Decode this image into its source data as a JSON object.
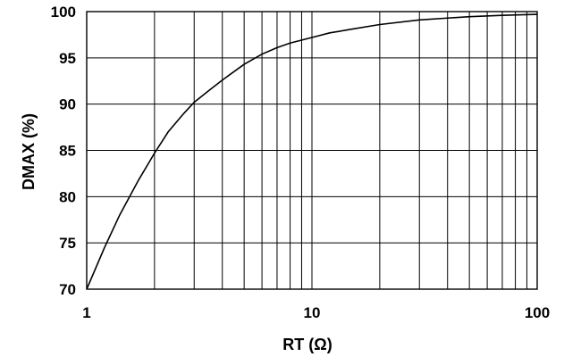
{
  "chart_data": {
    "type": "line",
    "xscale": "log",
    "xlim": [
      1,
      100
    ],
    "ylim": [
      70,
      100
    ],
    "grid": true,
    "x_ticks": [
      1,
      10,
      100
    ],
    "x_tick_labels": [
      "1",
      "10",
      "100"
    ],
    "y_ticks": [
      70,
      75,
      80,
      85,
      90,
      95,
      100
    ],
    "y_tick_labels": [
      "70",
      "75",
      "80",
      "85",
      "90",
      "95",
      "100"
    ],
    "xlabel": "RT  (Ω)",
    "ylabel": "DMAX  (%)",
    "series": [
      {
        "x": [
          1,
          1.2,
          1.4,
          1.7,
          2,
          2.3,
          2.7,
          3,
          3.5,
          4,
          5,
          6,
          7,
          8,
          10,
          12,
          15,
          20,
          30,
          40,
          50,
          70,
          100
        ],
        "y": [
          70,
          74.5,
          78,
          81.8,
          84.7,
          87,
          89,
          90.2,
          91.5,
          92.6,
          94.3,
          95.4,
          96.1,
          96.6,
          97.2,
          97.7,
          98.1,
          98.6,
          99.1,
          99.3,
          99.45,
          99.6,
          99.7
        ]
      }
    ]
  }
}
